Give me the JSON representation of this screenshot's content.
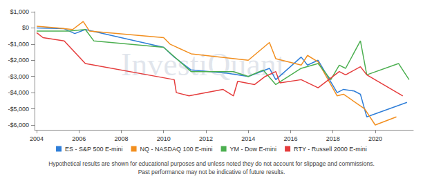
{
  "chart_data": {
    "type": "line",
    "annotations": [
      "InvestiQuant",
      "Hypothetical results are shown for educational purposes and unless noted they do not account for slippage and commissions.",
      "Past performance may not be indicative of future results."
    ],
    "xlim": [
      2003.9,
      2021.8
    ],
    "xticks": [
      2004,
      2006,
      2008,
      2010,
      2012,
      2014,
      2016,
      2018,
      2020
    ],
    "ylim": [
      -6300,
      1000
    ],
    "yticks": [
      {
        "value": 1000,
        "label": "$1,000"
      },
      {
        "value": 0,
        "label": "$0"
      },
      {
        "value": -1000,
        "label": "-$1,000"
      },
      {
        "value": -2000,
        "label": "-$2,000"
      },
      {
        "value": -3000,
        "label": "-$3,000"
      },
      {
        "value": -4000,
        "label": "-$4,000"
      },
      {
        "value": -5000,
        "label": "-$5,000"
      },
      {
        "value": -6000,
        "label": "-$6,000"
      }
    ],
    "grid": false,
    "legend": "bottom",
    "series": [
      {
        "name": "ES - S&P 500 E-mini",
        "color": "#2f7ed8",
        "x": [
          2004.0,
          2005.3,
          2005.8,
          2006.3,
          2010.0,
          2010.5,
          2011.3,
          2013.0,
          2014.0,
          2015.0,
          2015.3,
          2016.5,
          2016.8,
          2017.3,
          2018.2,
          2018.5,
          2019.0,
          2019.3,
          2019.6,
          2021.5
        ],
        "values": [
          0,
          -50,
          -350,
          -100,
          -1200,
          -1800,
          -2600,
          -2800,
          -3000,
          -2500,
          -3200,
          -1800,
          -2300,
          -2000,
          -4000,
          -3800,
          -3900,
          -4100,
          -5500,
          -4600
        ]
      },
      {
        "name": "NQ - NASDAQ 100 E-mini",
        "color": "#f28f1f",
        "x": [
          2004.0,
          2005.0,
          2005.7,
          2006.2,
          2006.5,
          2010.0,
          2010.3,
          2011.3,
          2014.0,
          2015.0,
          2015.3,
          2016.5,
          2016.8,
          2017.3,
          2018.2,
          2018.5,
          2019.5,
          2020.0,
          2021.0
        ],
        "values": [
          100,
          0,
          -100,
          400,
          -200,
          -600,
          -1000,
          -1600,
          -2000,
          -900,
          -1900,
          -2300,
          -1700,
          -2100,
          -4200,
          -4100,
          -5000,
          -6000,
          -5500
        ]
      },
      {
        "name": "YM - Dow E-mini",
        "color": "#4caf50",
        "x": [
          2004.0,
          2005.5,
          2006.3,
          2006.7,
          2010.0,
          2011.3,
          2013.3,
          2014.0,
          2014.7,
          2015.3,
          2016.5,
          2017.3,
          2017.9,
          2018.3,
          2018.6,
          2019.3,
          2019.6,
          2021.1,
          2021.6
        ],
        "values": [
          -200,
          -200,
          -100,
          -800,
          -1200,
          -2700,
          -2700,
          -3000,
          -2600,
          -3500,
          -2500,
          -2200,
          -3200,
          -2300,
          -2500,
          -800,
          -2900,
          -2200,
          -3200
        ]
      },
      {
        "name": "RTY - Russell 2000 E-mini",
        "color": "#e53c3c",
        "x": [
          2004.0,
          2004.3,
          2005.3,
          2006.3,
          2010.5,
          2010.6,
          2011.2,
          2012.8,
          2013.3,
          2013.5,
          2014.3,
          2014.8,
          2015.3,
          2015.5,
          2016.5,
          2017.3,
          2018.3,
          2018.6,
          2019.3,
          2019.6,
          2021.3
        ],
        "values": [
          -300,
          -600,
          -800,
          -2200,
          -3200,
          -4000,
          -4200,
          -3800,
          -4200,
          -3300,
          -3500,
          -3000,
          -2700,
          -3400,
          -3200,
          -3700,
          -2700,
          -2900,
          -2400,
          -2900,
          -4200
        ]
      }
    ]
  }
}
